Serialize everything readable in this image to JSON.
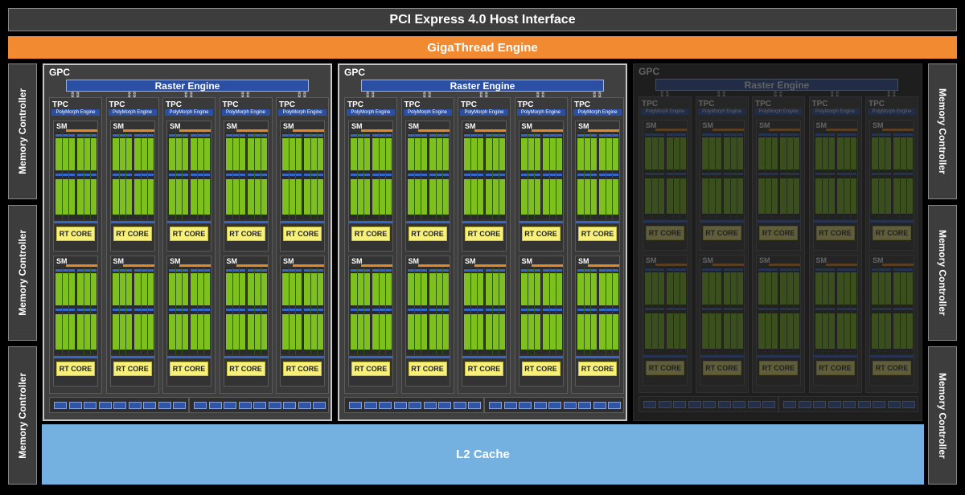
{
  "host_interface": "PCI Express 4.0 Host Interface",
  "thread_engine": "GigaThread Engine",
  "l2_cache": "L2 Cache",
  "memory_controller_label": "Memory Controller",
  "gpc_label": "GPC",
  "raster_engine_label": "Raster Engine",
  "tpc_label": "TPC",
  "polymorph_label": "PolyMorph Engine",
  "sm_label": "SM",
  "rt_core_label": "RT CORE",
  "gpcs_total": 3,
  "gpcs_enabled": 2,
  "tpcs_per_gpc": 5,
  "sms_per_tpc": 2,
  "colors": {
    "thread_engine": "#f28a32",
    "l2_cache": "#74b1e1",
    "raster": "#2b4fa3",
    "rt_core": "#f7f07a",
    "cuda_core": "#7ec01e"
  }
}
